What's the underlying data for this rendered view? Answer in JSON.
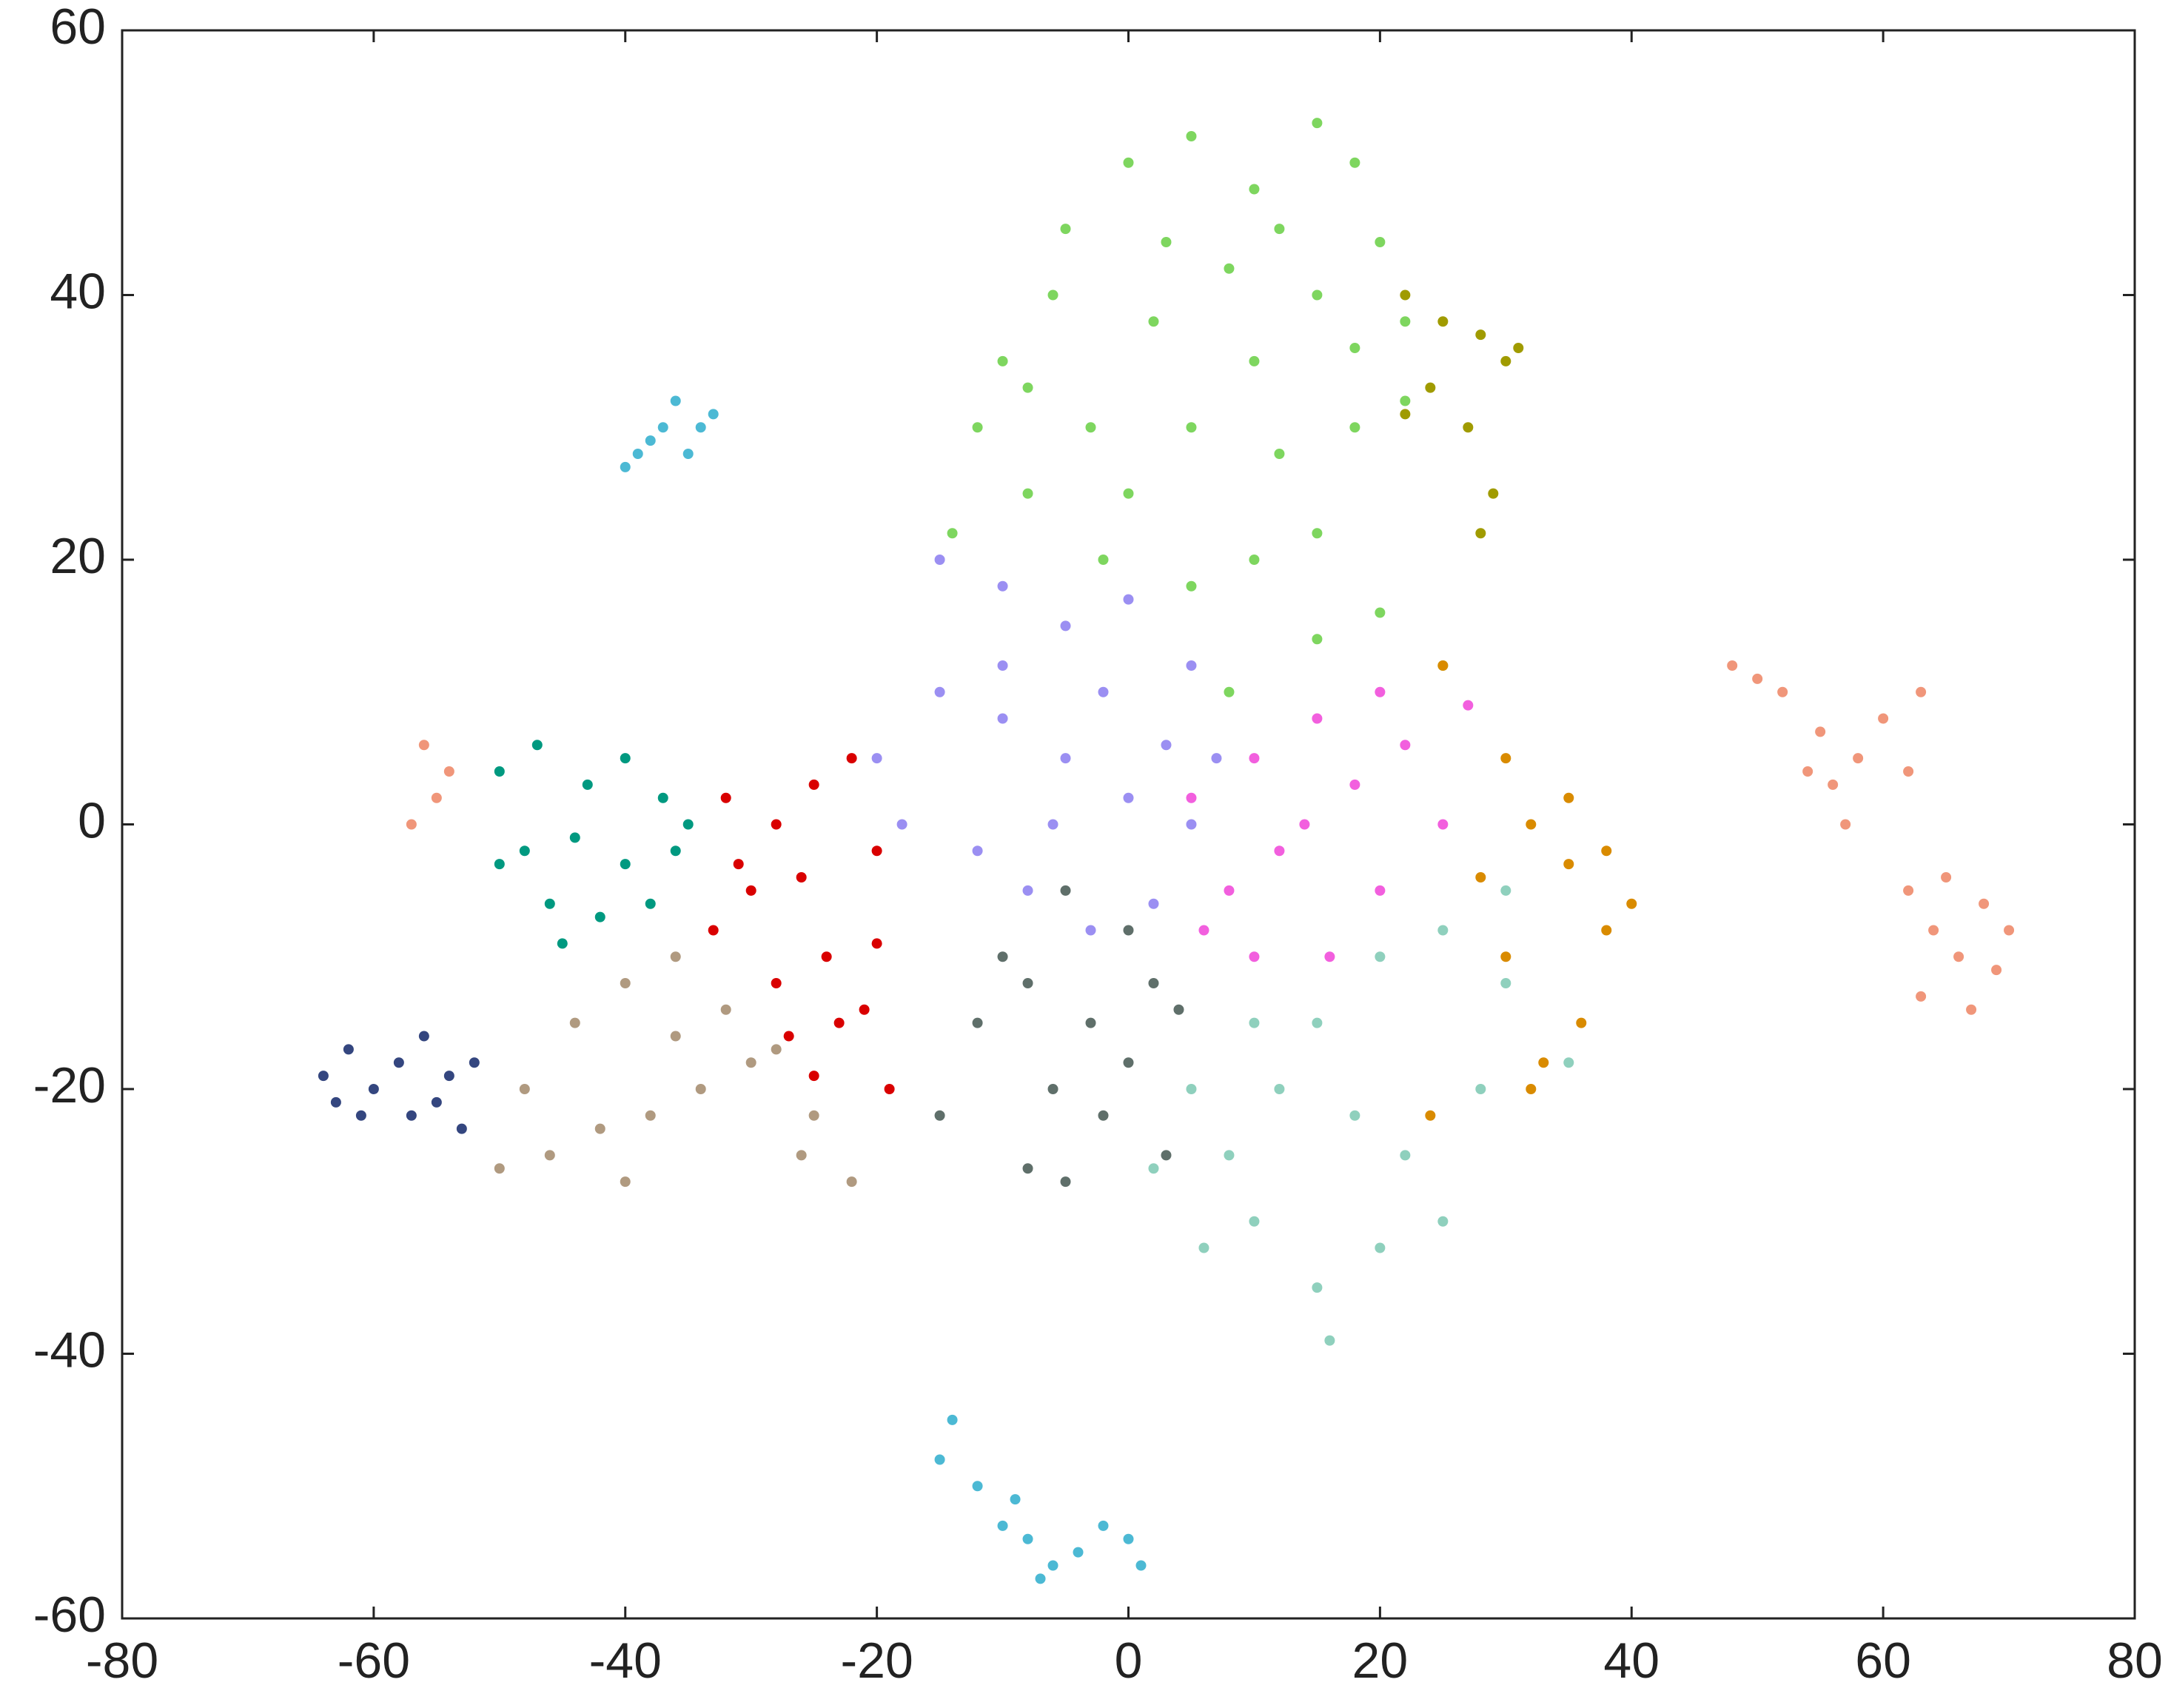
{
  "chart_data": {
    "type": "scatter",
    "xlim": [
      -80,
      80
    ],
    "ylim": [
      -60,
      60
    ],
    "xticks": [
      -80,
      -60,
      -40,
      -20,
      0,
      20,
      40,
      60,
      80
    ],
    "yticks": [
      -60,
      -40,
      -20,
      0,
      20,
      40,
      60
    ],
    "series": [
      {
        "color": "#7ed65f",
        "x": [
          -10,
          -5,
          0,
          5,
          10,
          15,
          18,
          20,
          22,
          15,
          8,
          2,
          -3,
          -8,
          -12,
          0,
          5,
          10,
          12,
          18,
          22,
          15,
          10,
          5,
          -2,
          8,
          15,
          20,
          25,
          -6,
          3,
          12,
          -14,
          -8,
          18
        ],
        "values": [
          35,
          45,
          50,
          52,
          48,
          53,
          50,
          44,
          38,
          40,
          42,
          38,
          30,
          25,
          30,
          25,
          30,
          35,
          28,
          30,
          32,
          22,
          20,
          18,
          20,
          10,
          14,
          16,
          12,
          40,
          44,
          45,
          22,
          33,
          36
        ]
      },
      {
        "color": "#a09b00",
        "x": [
          22,
          25,
          28,
          30,
          24,
          27,
          22,
          29,
          28,
          31
        ],
        "values": [
          40,
          38,
          37,
          35,
          33,
          30,
          31,
          25,
          22,
          36
        ]
      },
      {
        "color": "#9b8ff2",
        "x": [
          -15,
          -10,
          -5,
          0,
          5,
          -20,
          -15,
          -10,
          -5,
          0,
          5,
          -18,
          -12,
          -8,
          -3,
          2,
          -10,
          -2,
          3,
          -6,
          7
        ],
        "values": [
          20,
          18,
          15,
          17,
          12,
          5,
          10,
          8,
          5,
          2,
          0,
          0,
          -2,
          -5,
          -8,
          -6,
          12,
          10,
          6,
          0,
          5
        ]
      },
      {
        "color": "#f25fde",
        "x": [
          5,
          8,
          10,
          12,
          15,
          18,
          20,
          22,
          25,
          16,
          10,
          27,
          14,
          20,
          6
        ],
        "values": [
          2,
          -5,
          5,
          -2,
          8,
          3,
          -5,
          6,
          0,
          -10,
          -10,
          9,
          0,
          10,
          -8
        ]
      },
      {
        "color": "#d98b00",
        "x": [
          25,
          30,
          32,
          35,
          38,
          40,
          36,
          33,
          28,
          35,
          30,
          38,
          24,
          32
        ],
        "values": [
          12,
          5,
          0,
          -3,
          -8,
          -6,
          -15,
          -18,
          -4,
          2,
          -10,
          -2,
          -22,
          -20
        ]
      },
      {
        "color": "#8fd0bd",
        "x": [
          5,
          8,
          10,
          15,
          16,
          12,
          15,
          20,
          25,
          30,
          35,
          28,
          22,
          20,
          25,
          18,
          10,
          6,
          30,
          2
        ],
        "values": [
          -20,
          -25,
          -30,
          -35,
          -39,
          -20,
          -15,
          -10,
          -8,
          -12,
          -18,
          -20,
          -25,
          -32,
          -30,
          -22,
          -15,
          -32,
          -5,
          -26
        ]
      },
      {
        "color": "#5f6f6a",
        "x": [
          -10,
          -5,
          0,
          -12,
          -8,
          -3,
          2,
          -6,
          -2,
          -5,
          0,
          3,
          -15,
          4,
          -8
        ],
        "values": [
          -10,
          -5,
          -8,
          -15,
          -12,
          -15,
          -12,
          -20,
          -22,
          -27,
          -18,
          -25,
          -22,
          -14,
          -26
        ]
      },
      {
        "color": "#d90000",
        "x": [
          -32,
          -28,
          -25,
          -22,
          -30,
          -26,
          -20,
          -33,
          -28,
          -24,
          -20,
          -27,
          -23,
          -19,
          -25,
          -31,
          -21
        ],
        "values": [
          2,
          0,
          3,
          5,
          -5,
          -4,
          -2,
          -8,
          -12,
          -10,
          -9,
          -16,
          -15,
          -20,
          -19,
          -3,
          -14
        ]
      },
      {
        "color": "#009980",
        "x": [
          -50,
          -47,
          -43,
          -40,
          -37,
          -48,
          -44,
          -40,
          -36,
          -46,
          -42,
          -38,
          -50,
          -35,
          -45
        ],
        "values": [
          4,
          6,
          3,
          5,
          2,
          -2,
          -1,
          -3,
          -2,
          -6,
          -7,
          -6,
          -3,
          0,
          -9
        ]
      },
      {
        "color": "#b09a80",
        "x": [
          -48,
          -44,
          -40,
          -36,
          -32,
          -28,
          -25,
          -22,
          -46,
          -42,
          -38,
          -34,
          -30,
          -50,
          -40,
          -36,
          -26
        ],
        "values": [
          -20,
          -15,
          -12,
          -10,
          -14,
          -17,
          -22,
          -27,
          -25,
          -23,
          -22,
          -20,
          -18,
          -26,
          -27,
          -16,
          -25
        ]
      },
      {
        "color": "#34467f",
        "x": [
          -64,
          -62,
          -60,
          -58,
          -56,
          -54,
          -57,
          -53,
          -61,
          -55,
          -52,
          -63
        ],
        "values": [
          -19,
          -17,
          -20,
          -18,
          -16,
          -19,
          -22,
          -23,
          -22,
          -21,
          -18,
          -21
        ]
      },
      {
        "color": "#f0967a",
        "x": [
          -56,
          -55,
          -57,
          -54,
          48,
          52,
          55,
          58,
          60,
          63,
          56,
          57,
          54,
          62,
          50,
          62,
          65,
          68,
          70,
          66,
          63,
          67,
          69,
          64
        ],
        "values": [
          6,
          2,
          0,
          4,
          12,
          10,
          7,
          5,
          8,
          10,
          3,
          0,
          4,
          4,
          11,
          -5,
          -4,
          -6,
          -8,
          -10,
          -13,
          -14,
          -11,
          -8
        ]
      },
      {
        "color": "#4cb9d4",
        "x": [
          -40,
          -38,
          -36,
          -34,
          -37,
          -35,
          -33,
          -39,
          -15,
          -12,
          -10,
          -8,
          -6,
          -4,
          0,
          1,
          -9,
          -14,
          -7,
          -2
        ],
        "values": [
          27,
          29,
          32,
          30,
          30,
          28,
          31,
          28,
          -48,
          -50,
          -53,
          -54,
          -56,
          -55,
          -54,
          -56,
          -51,
          -45,
          -57,
          -53
        ]
      }
    ]
  }
}
